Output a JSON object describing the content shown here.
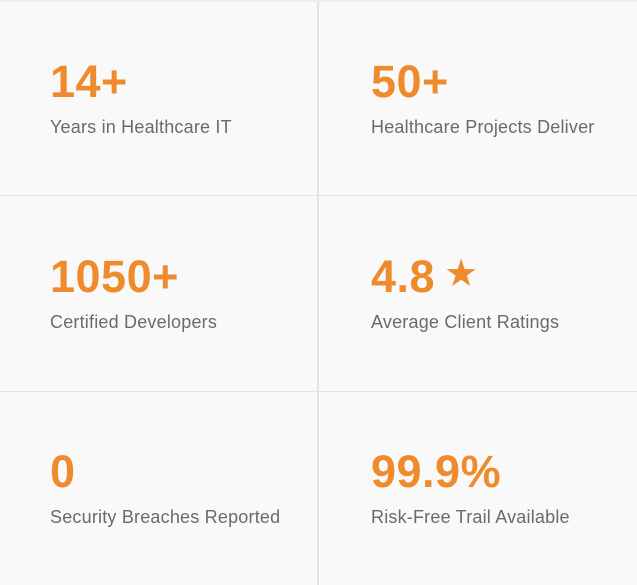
{
  "section": {
    "name": "healthcare-stats",
    "stats": [
      {
        "value": "14+",
        "label": "Years in Healthcare IT"
      },
      {
        "value": "50+",
        "label": "Healthcare Projects Deliver"
      },
      {
        "value": "1050+",
        "label": "Certified Developers"
      },
      {
        "value": "4.8",
        "star_glyph": "★",
        "label": "Average Client Ratings"
      },
      {
        "value": "0",
        "label": "Security Breaches Reported"
      },
      {
        "value": "99.9%",
        "label": "Risk-Free Trail Available"
      }
    ]
  },
  "colors": {
    "accent": "#EF8B2D",
    "label": "#6A6A6A",
    "background": "#F9F9F9",
    "divider": "#E3E3E3"
  }
}
